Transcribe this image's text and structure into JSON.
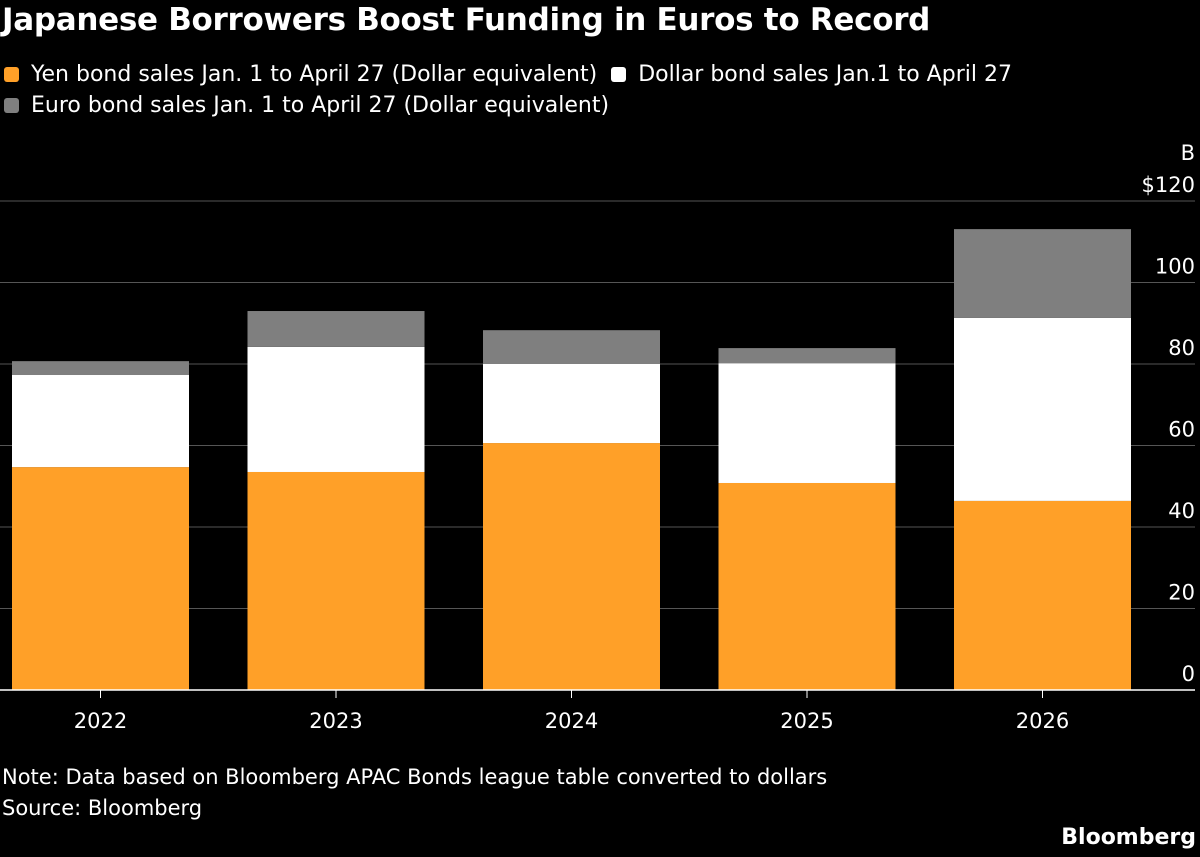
{
  "chart_data": {
    "type": "bar",
    "stacked": true,
    "title": "Japanese Borrowers Boost Funding in Euros to Record",
    "categories": [
      "2022",
      "2023",
      "2024",
      "2025",
      "2026"
    ],
    "series": [
      {
        "name": "Yen bond sales Jan. 1 to April 27 (Dollar equivalent)",
        "color": "#ffa028",
        "values": [
          54.7,
          53.5,
          60.6,
          50.8,
          46.4
        ]
      },
      {
        "name": "Dollar bond sales Jan.1 to April 27",
        "color": "#ffffff",
        "values": [
          22.6,
          30.7,
          19.4,
          29.4,
          44.9
        ]
      },
      {
        "name": "Euro bond sales Jan. 1 to April 27 (Dollar equivalent)",
        "color": "#7f7f7f",
        "values": [
          3.4,
          8.8,
          8.3,
          3.7,
          21.8
        ]
      }
    ],
    "yunit": "B",
    "ylim": [
      0,
      120
    ],
    "yticks": [
      0,
      20,
      40,
      60,
      80,
      100,
      120
    ],
    "ytick_labels": [
      "0",
      "20",
      "40",
      "60",
      "80",
      "100",
      "$120"
    ],
    "grid": true,
    "legend_placement": "top-left",
    "note": "Note: Data based on Bloomberg APAC Bonds league table converted to dollars",
    "source": "Source: Bloomberg"
  },
  "branding": {
    "logo": "Bloomberg"
  }
}
